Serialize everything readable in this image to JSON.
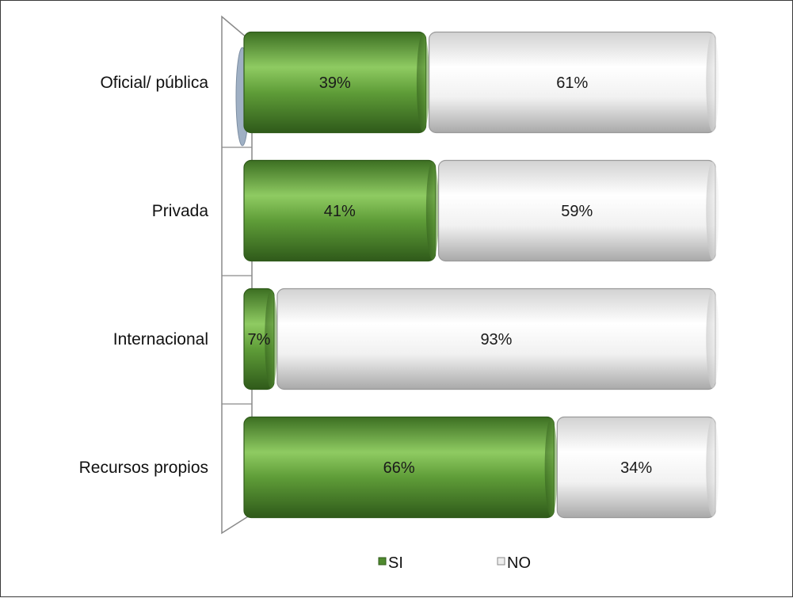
{
  "chart_data": {
    "type": "bar",
    "orientation": "horizontal",
    "stacked": true,
    "percent": true,
    "three_d": true,
    "categories": [
      "Oficial/ pública",
      "Privada",
      "Internacional",
      "Recursos propios"
    ],
    "series": [
      {
        "name": "SI",
        "values": [
          39,
          41,
          7,
          66
        ],
        "labels": [
          "39%",
          "41%",
          "7%",
          "66%"
        ],
        "color": "#4f8a2e"
      },
      {
        "name": "NO",
        "values": [
          61,
          59,
          93,
          34
        ],
        "labels": [
          "61%",
          "59%",
          "93%",
          "34%"
        ],
        "color": "#e9e9e9"
      }
    ],
    "xlim": [
      0,
      100
    ],
    "grid": false,
    "legend_position": "bottom"
  }
}
